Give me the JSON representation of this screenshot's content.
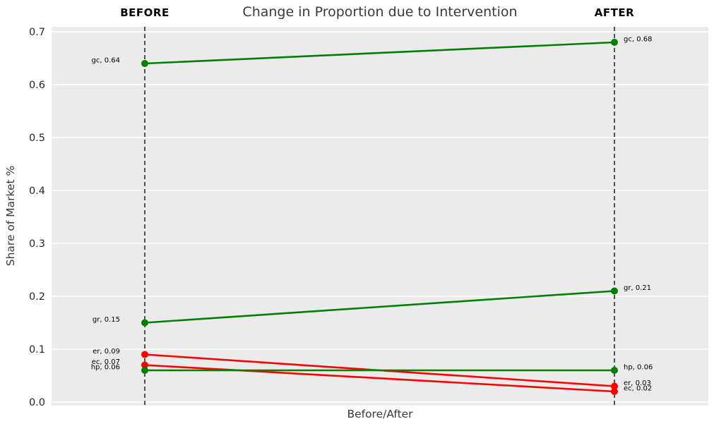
{
  "figure": {
    "title": "Change in Proportion due to Intervention",
    "before_header": "BEFORE",
    "after_header": "AFTER",
    "xlabel": "Before/After",
    "ylabel": "Share of Market %"
  },
  "chart_data": {
    "type": "line",
    "variant": "slope-chart",
    "title": "Change in Proportion due to Intervention",
    "xlabel": "Before/After",
    "ylabel": "Share of Market %",
    "categories": [
      "BEFORE",
      "AFTER"
    ],
    "ylim": [
      0.0,
      0.7
    ],
    "yticks": [
      0.0,
      0.1,
      0.2,
      0.3,
      0.4,
      0.5,
      0.6,
      0.7
    ],
    "ytick_labels": [
      "0.0",
      "0.1",
      "0.2",
      "0.3",
      "0.4",
      "0.5",
      "0.6",
      "0.7"
    ],
    "legend": "none",
    "grid": {
      "horizontal_major": true,
      "color": "#ffffff",
      "plot_background": "#ebebeb"
    },
    "column_guides": {
      "style": "dashed",
      "color": "#000000"
    },
    "colors": {
      "increase_or_flat": "#008000",
      "decrease": "#ff0000"
    },
    "series": [
      {
        "name": "gc",
        "values": [
          0.64,
          0.68
        ],
        "color": "#008000",
        "trend": "increase",
        "point_labels": [
          "gc, 0.64",
          "gc, 0.68"
        ]
      },
      {
        "name": "gr",
        "values": [
          0.15,
          0.21
        ],
        "color": "#008000",
        "trend": "increase",
        "point_labels": [
          "gr, 0.15",
          "gr, 0.21"
        ]
      },
      {
        "name": "er",
        "values": [
          0.09,
          0.03
        ],
        "color": "#ff0000",
        "trend": "decrease",
        "point_labels": [
          "er, 0.09",
          "er, 0.03"
        ]
      },
      {
        "name": "ec",
        "values": [
          0.07,
          0.02
        ],
        "color": "#ff0000",
        "trend": "decrease",
        "point_labels": [
          "ec, 0.07",
          "ec, 0.02"
        ]
      },
      {
        "name": "hp",
        "values": [
          0.06,
          0.06
        ],
        "color": "#008000",
        "trend": "flat",
        "point_labels": [
          "hp, 0.06",
          "hp, 0.06"
        ]
      }
    ]
  }
}
